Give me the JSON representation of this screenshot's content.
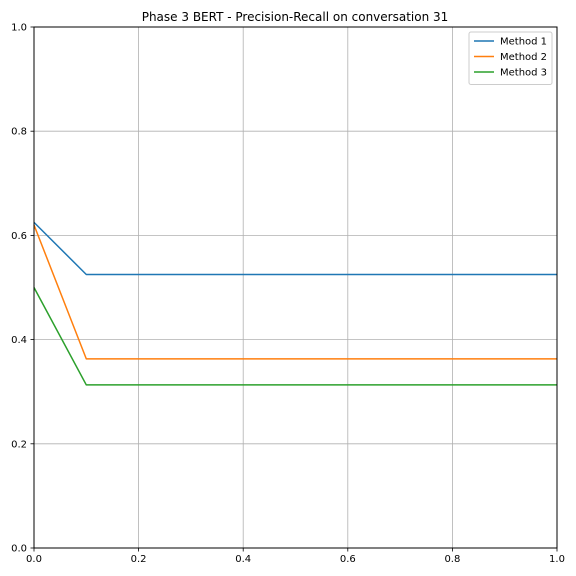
{
  "chart_data": {
    "type": "line",
    "title": "Phase 3 BERT - Precision-Recall on conversation 31",
    "xlabel": "",
    "ylabel": "",
    "xlim": [
      0,
      1
    ],
    "ylim": [
      0,
      1
    ],
    "xticks": [
      "0.0",
      "0.2",
      "0.4",
      "0.6",
      "0.8",
      "1.0"
    ],
    "yticks": [
      "0.0",
      "0.2",
      "0.4",
      "0.6",
      "0.8",
      "1.0"
    ],
    "grid": true,
    "legend_position": "top-right",
    "x": [
      0.0,
      0.1,
      1.0
    ],
    "series": [
      {
        "name": "Method 1",
        "color": "#1f77b4",
        "values": [
          0.625,
          0.525,
          0.525
        ]
      },
      {
        "name": "Method 2",
        "color": "#ff7f0e",
        "values": [
          0.62,
          0.363,
          0.363
        ]
      },
      {
        "name": "Method 3",
        "color": "#2ca02c",
        "values": [
          0.5,
          0.313,
          0.313
        ]
      }
    ]
  }
}
